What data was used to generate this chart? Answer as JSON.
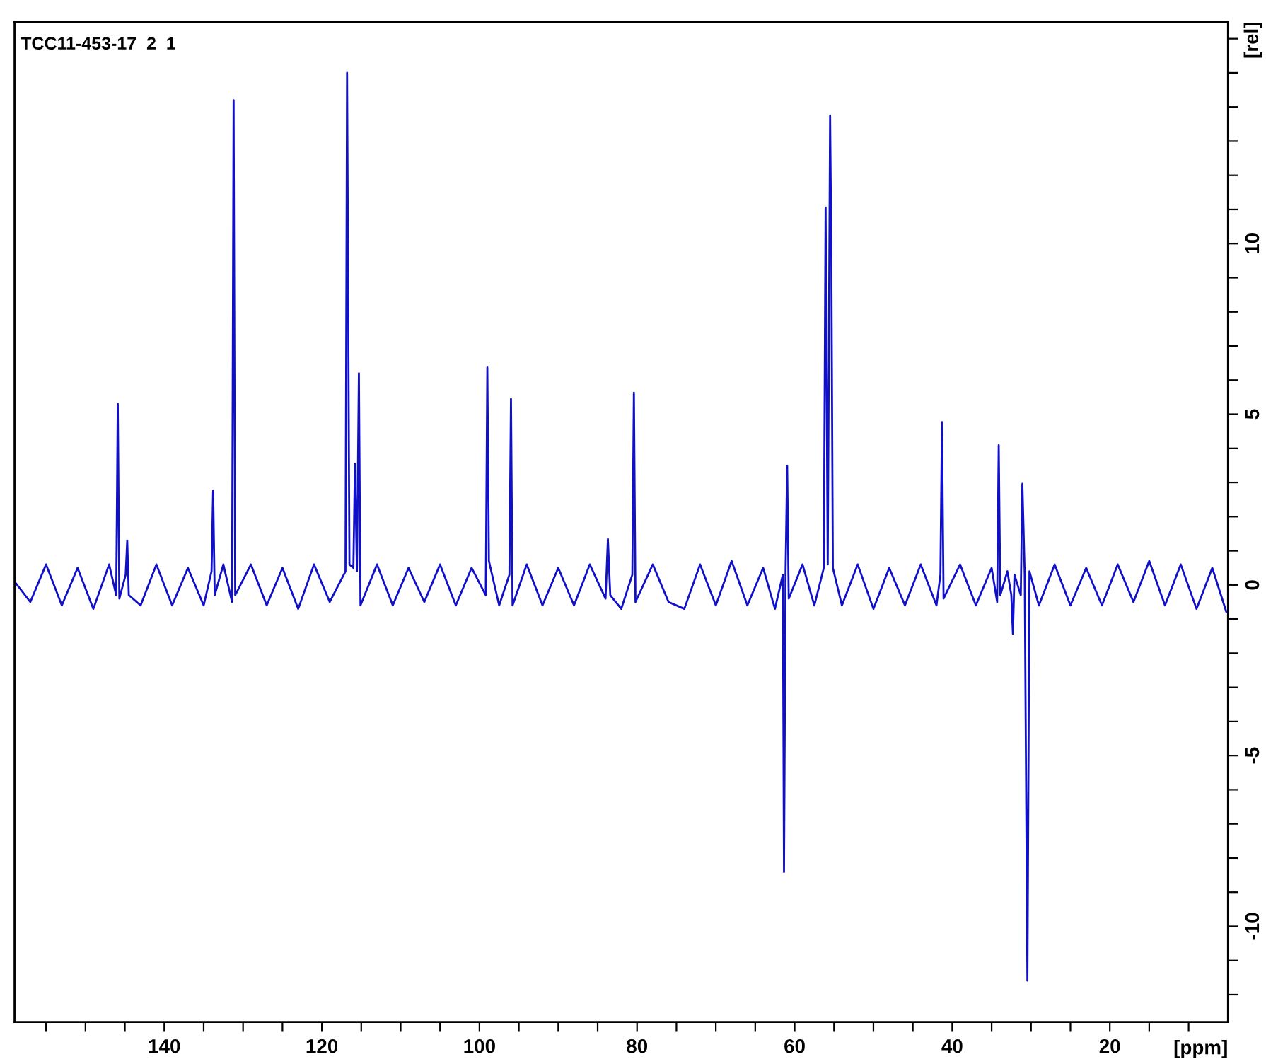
{
  "chart_data": {
    "type": "line",
    "title": "TCC11-453-17  2  1",
    "xlabel": "[ppm]",
    "ylabel": "[rel]",
    "xlim": [
      159,
      5
    ],
    "ylim": [
      -12.8,
      16.5
    ],
    "xticks": [
      {
        "value": 155,
        "label": null
      },
      {
        "value": 150,
        "label": null
      },
      {
        "value": 145,
        "label": null
      },
      140,
      {
        "value": 135,
        "label": null
      },
      {
        "value": 130,
        "label": null
      },
      {
        "value": 125,
        "label": null
      },
      120,
      {
        "value": 115,
        "label": null
      },
      {
        "value": 110,
        "label": null
      },
      {
        "value": 105,
        "label": null
      },
      100,
      {
        "value": 95,
        "label": null
      },
      {
        "value": 90,
        "label": null
      },
      {
        "value": 85,
        "label": null
      },
      80,
      {
        "value": 75,
        "label": null
      },
      {
        "value": 70,
        "label": null
      },
      {
        "value": 65,
        "label": null
      },
      60,
      {
        "value": 55,
        "label": null
      },
      {
        "value": 50,
        "label": null
      },
      {
        "value": 45,
        "label": null
      },
      40,
      {
        "value": 35,
        "label": null
      },
      {
        "value": 30,
        "label": null
      },
      {
        "value": 25,
        "label": null
      },
      20,
      {
        "value": 15,
        "label": null
      },
      {
        "value": 10,
        "label": null
      }
    ],
    "yticks": [
      {
        "value": -12,
        "label": null
      },
      {
        "value": -11,
        "label": null
      },
      -10,
      {
        "value": -9,
        "label": null
      },
      {
        "value": -8,
        "label": null
      },
      {
        "value": -7,
        "label": null
      },
      {
        "value": -6,
        "label": null
      },
      -5,
      {
        "value": -4,
        "label": null
      },
      {
        "value": -3,
        "label": null
      },
      {
        "value": -2,
        "label": null
      },
      {
        "value": -1,
        "label": null
      },
      0,
      {
        "value": 1,
        "label": null
      },
      {
        "value": 2,
        "label": null
      },
      {
        "value": 3,
        "label": null
      },
      {
        "value": 4,
        "label": null
      },
      5,
      {
        "value": 6,
        "label": null
      },
      {
        "value": 7,
        "label": null
      },
      {
        "value": 8,
        "label": null
      },
      {
        "value": 9,
        "label": null
      },
      10,
      {
        "value": 11,
        "label": null
      },
      {
        "value": 12,
        "label": null
      },
      {
        "value": 13,
        "label": null
      },
      {
        "value": 14,
        "label": null
      },
      {
        "value": 15,
        "label": null
      },
      {
        "value": 16,
        "label": null
      }
    ],
    "grid": false,
    "legend": false,
    "series": [
      {
        "color": "#1010c8",
        "x": [
          159,
          157,
          155,
          153,
          151,
          149,
          147,
          146.1,
          145.9,
          145.7,
          144.9,
          144.7,
          144.5,
          143,
          141,
          139,
          137,
          135,
          134.0,
          133.8,
          133.6,
          132.5,
          131.4,
          131.2,
          131.0,
          129,
          127,
          125,
          123,
          121,
          119,
          117.0,
          116.8,
          116.5,
          116.0,
          115.8,
          115.55,
          115.3,
          115.1,
          113,
          111,
          109,
          107,
          105,
          103,
          101,
          99.2,
          99.0,
          98.8,
          97.5,
          96.2,
          96.0,
          95.8,
          94,
          92,
          90,
          88,
          86,
          84.0,
          83.7,
          83.4,
          82,
          80.6,
          80.4,
          80.2,
          78,
          76,
          74,
          72,
          70,
          68,
          66,
          64,
          62.5,
          61.5,
          61.35,
          61.15,
          60.95,
          60.75,
          59,
          57.5,
          56.3,
          56.07,
          55.8,
          55.5,
          55.35,
          55.15,
          54,
          52,
          50,
          48,
          46,
          44,
          42,
          41.5,
          41.3,
          41.1,
          39,
          37,
          35,
          34.3,
          34.1,
          33.9,
          33,
          32.5,
          32.3,
          32.1,
          31.3,
          31.1,
          30.8,
          30.46,
          30.2,
          29,
          27,
          25,
          23,
          21,
          19,
          17,
          15,
          13,
          11,
          9,
          7,
          5.2
        ],
        "values": [
          0.1,
          -0.5,
          0.6,
          -0.6,
          0.5,
          -0.7,
          0.6,
          -0.3,
          5.3,
          -0.4,
          0.3,
          1.3,
          -0.3,
          -0.6,
          0.6,
          -0.6,
          0.5,
          -0.6,
          0.4,
          2.76,
          -0.3,
          0.6,
          -0.5,
          14.2,
          -0.3,
          0.6,
          -0.6,
          0.5,
          -0.7,
          0.6,
          -0.5,
          0.4,
          15.0,
          0.6,
          0.5,
          3.55,
          0.4,
          6.2,
          -0.6,
          0.6,
          -0.6,
          0.5,
          -0.5,
          0.6,
          -0.6,
          0.5,
          -0.3,
          6.37,
          0.7,
          -0.6,
          0.3,
          5.45,
          -0.6,
          0.6,
          -0.6,
          0.5,
          -0.6,
          0.6,
          -0.4,
          1.34,
          -0.3,
          -0.7,
          0.3,
          5.63,
          -0.5,
          0.6,
          -0.5,
          -0.7,
          0.6,
          -0.6,
          0.7,
          -0.6,
          0.5,
          -0.7,
          0.3,
          -8.41,
          0.4,
          3.49,
          -0.4,
          0.6,
          -0.6,
          0.5,
          11.06,
          0.6,
          13.75,
          9.9,
          0.5,
          -0.6,
          0.6,
          -0.7,
          0.5,
          -0.6,
          0.6,
          -0.6,
          0.3,
          4.77,
          -0.4,
          0.6,
          -0.6,
          0.5,
          -0.5,
          4.09,
          -0.3,
          0.4,
          -0.3,
          -1.43,
          0.3,
          -0.3,
          2.96,
          0.3,
          -11.59,
          0.4,
          -0.6,
          0.6,
          -0.6,
          0.5,
          -0.6,
          0.6,
          -0.5,
          0.7,
          -0.6,
          0.6,
          -0.7,
          0.5,
          -0.8
        ]
      }
    ]
  }
}
